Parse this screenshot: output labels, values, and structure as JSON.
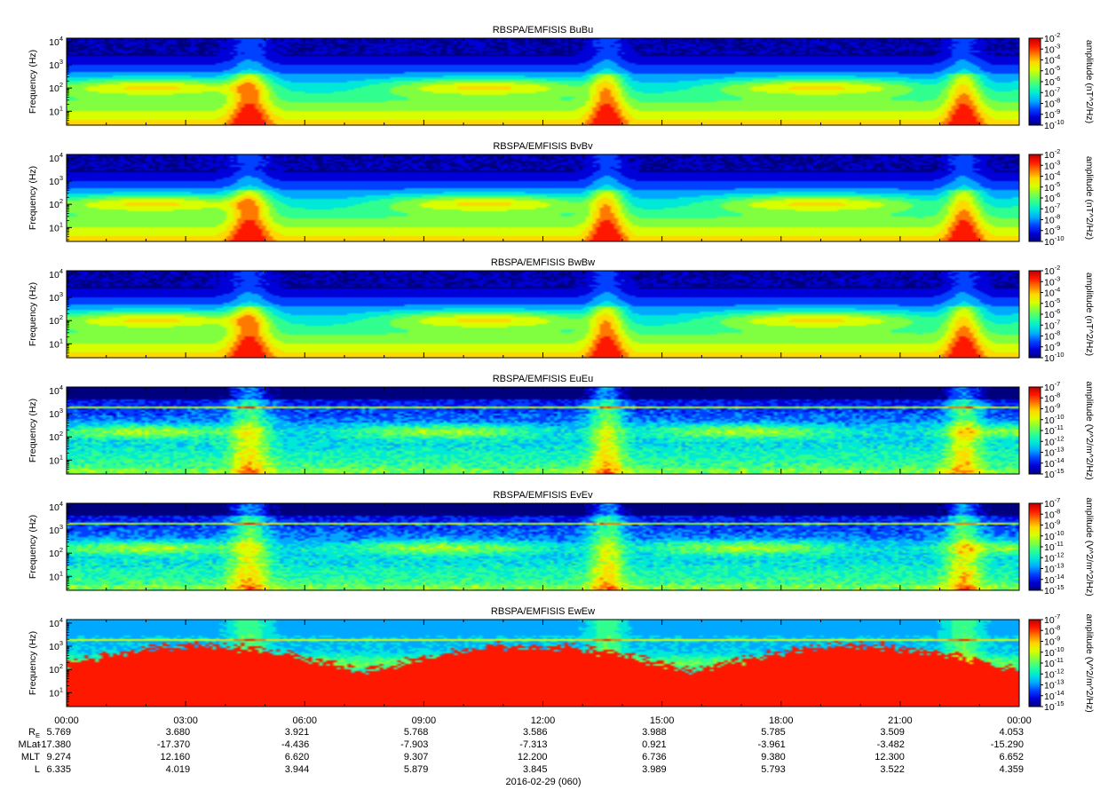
{
  "chart_data": [
    {
      "type": "heatmap",
      "title": "RBSPA/EMFISIS  BuBu",
      "ylabel": "Frequency (Hz)",
      "yscale": "log",
      "y_tick_labels": [
        [
          "10",
          "1"
        ],
        [
          "10",
          "2"
        ],
        [
          "10",
          "3"
        ],
        [
          "10",
          "4"
        ]
      ],
      "colorbar": {
        "label": "amplitude (nT^2/Hz)",
        "ticks": [
          [
            "10",
            "-2"
          ],
          [
            "10",
            "-3"
          ],
          [
            "10",
            "-4"
          ],
          [
            "10",
            "-5"
          ],
          [
            "10",
            "-6"
          ],
          [
            "10",
            "-7"
          ],
          [
            "10",
            "-8"
          ],
          [
            "10",
            "-9"
          ],
          [
            "10",
            "-10"
          ]
        ]
      }
    },
    {
      "type": "heatmap",
      "title": "RBSPA/EMFISIS  BvBv",
      "ylabel": "Frequency (Hz)",
      "yscale": "log",
      "y_tick_labels": [
        [
          "10",
          "1"
        ],
        [
          "10",
          "2"
        ],
        [
          "10",
          "3"
        ],
        [
          "10",
          "4"
        ]
      ],
      "colorbar": {
        "label": "amplitude (nT^2/Hz)",
        "ticks": [
          [
            "10",
            "-2"
          ],
          [
            "10",
            "-3"
          ],
          [
            "10",
            "-4"
          ],
          [
            "10",
            "-5"
          ],
          [
            "10",
            "-6"
          ],
          [
            "10",
            "-7"
          ],
          [
            "10",
            "-8"
          ],
          [
            "10",
            "-9"
          ],
          [
            "10",
            "-10"
          ]
        ]
      }
    },
    {
      "type": "heatmap",
      "title": "RBSPA/EMFISIS  BwBw",
      "ylabel": "Frequency (Hz)",
      "yscale": "log",
      "y_tick_labels": [
        [
          "10",
          "1"
        ],
        [
          "10",
          "2"
        ],
        [
          "10",
          "3"
        ],
        [
          "10",
          "4"
        ]
      ],
      "colorbar": {
        "label": "amplitude (nT^2/Hz)",
        "ticks": [
          [
            "10",
            "-2"
          ],
          [
            "10",
            "-3"
          ],
          [
            "10",
            "-4"
          ],
          [
            "10",
            "-5"
          ],
          [
            "10",
            "-6"
          ],
          [
            "10",
            "-7"
          ],
          [
            "10",
            "-8"
          ],
          [
            "10",
            "-9"
          ],
          [
            "10",
            "-10"
          ]
        ]
      }
    },
    {
      "type": "heatmap",
      "title": "RBSPA/EMFISIS  EuEu",
      "ylabel": "Frequency (Hz)",
      "yscale": "log",
      "y_tick_labels": [
        [
          "10",
          "1"
        ],
        [
          "10",
          "2"
        ],
        [
          "10",
          "3"
        ],
        [
          "10",
          "4"
        ]
      ],
      "colorbar": {
        "label": "amplitude (V^2/m^2/Hz)",
        "ticks": [
          [
            "10",
            "-7"
          ],
          [
            "10",
            "-8"
          ],
          [
            "10",
            "-9"
          ],
          [
            "10",
            "-10"
          ],
          [
            "10",
            "-11"
          ],
          [
            "10",
            "-12"
          ],
          [
            "10",
            "-13"
          ],
          [
            "10",
            "-14"
          ],
          [
            "10",
            "-15"
          ]
        ]
      }
    },
    {
      "type": "heatmap",
      "title": "RBSPA/EMFISIS  EvEv",
      "ylabel": "Frequency (Hz)",
      "yscale": "log",
      "y_tick_labels": [
        [
          "10",
          "1"
        ],
        [
          "10",
          "2"
        ],
        [
          "10",
          "3"
        ],
        [
          "10",
          "4"
        ]
      ],
      "colorbar": {
        "label": "amplitude (V^2/m^2/Hz)",
        "ticks": [
          [
            "10",
            "-7"
          ],
          [
            "10",
            "-8"
          ],
          [
            "10",
            "-9"
          ],
          [
            "10",
            "-10"
          ],
          [
            "10",
            "-11"
          ],
          [
            "10",
            "-12"
          ],
          [
            "10",
            "-13"
          ],
          [
            "10",
            "-14"
          ],
          [
            "10",
            "-15"
          ]
        ]
      }
    },
    {
      "type": "heatmap",
      "title": "RBSPA/EMFISIS  EwEw",
      "ylabel": "Frequency (Hz)",
      "yscale": "log",
      "y_tick_labels": [
        [
          "10",
          "1"
        ],
        [
          "10",
          "2"
        ],
        [
          "10",
          "3"
        ],
        [
          "10",
          "4"
        ]
      ],
      "colorbar": {
        "label": "amplitude (V^2/m^2/Hz)",
        "ticks": [
          [
            "10",
            "-7"
          ],
          [
            "10",
            "-8"
          ],
          [
            "10",
            "-9"
          ],
          [
            "10",
            "-10"
          ],
          [
            "10",
            "-11"
          ],
          [
            "10",
            "-12"
          ],
          [
            "10",
            "-13"
          ],
          [
            "10",
            "-14"
          ],
          [
            "10",
            "-15"
          ]
        ]
      }
    }
  ],
  "x_axis": {
    "tick_labels": [
      "00:00",
      "03:00",
      "06:00",
      "09:00",
      "12:00",
      "15:00",
      "18:00",
      "21:00",
      "00:00"
    ],
    "date_label": "2016-02-29 (060)"
  },
  "ephemeris": {
    "row_labels": [
      {
        "base": "R",
        "sub": "E"
      },
      {
        "base": "MLat",
        "sub": ""
      },
      {
        "base": "MLT",
        "sub": ""
      },
      {
        "base": "L",
        "sub": ""
      }
    ],
    "rows": [
      [
        "5.769",
        "3.680",
        "3.921",
        "5.768",
        "3.586",
        "3.988",
        "5.785",
        "3.509",
        "4.053"
      ],
      [
        "-17.380",
        "-17.370",
        "-4.436",
        "-7.903",
        "-7.313",
        "0.921",
        "-3.961",
        "-3.482",
        "-15.290"
      ],
      [
        "9.274",
        "12.160",
        "6.620",
        "9.307",
        "12.200",
        "6.736",
        "9.380",
        "12.300",
        "6.652"
      ],
      [
        "6.335",
        "4.019",
        "3.944",
        "5.879",
        "3.845",
        "3.989",
        "5.793",
        "3.522",
        "4.359"
      ]
    ]
  },
  "colormap": [
    "#00007f",
    "#0000d8",
    "#0040ff",
    "#00a8ff",
    "#00e8d8",
    "#30ff90",
    "#80ff40",
    "#d8ff00",
    "#ffd800",
    "#ff7800",
    "#ff1800",
    "#c00000"
  ]
}
